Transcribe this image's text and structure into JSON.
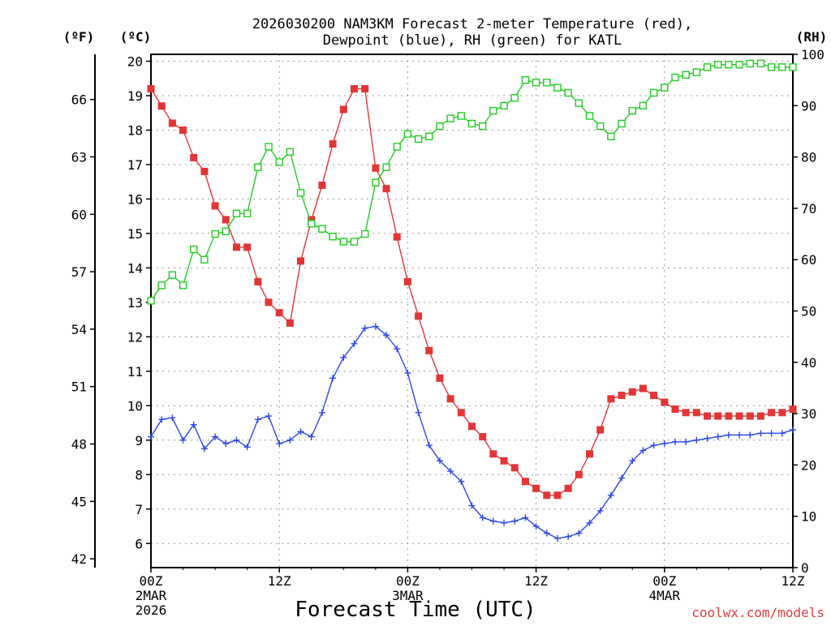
{
  "chart_data": {
    "type": "line",
    "title": [
      "2026030200 NAM3KM Forecast 2-meter Temperature (red),",
      "Dewpoint (blue), RH (green) for KATL"
    ],
    "xlabel": "Forecast Time (UTC)",
    "credit": "coolwx.com/models",
    "units": {
      "fahrenheit": "(ºF)",
      "celsius": "(ºC)",
      "rh": "(RH)"
    },
    "x_range_hours": [
      0,
      60
    ],
    "x_ticks": [
      {
        "hour": 0,
        "label": "00Z",
        "date": "2MAR",
        "year": "2026"
      },
      {
        "hour": 12,
        "label": "12Z",
        "date": "",
        "year": ""
      },
      {
        "hour": 24,
        "label": "00Z",
        "date": "3MAR",
        "year": ""
      },
      {
        "hour": 36,
        "label": "12Z",
        "date": "",
        "year": ""
      },
      {
        "hour": 48,
        "label": "00Z",
        "date": "4MAR",
        "year": ""
      },
      {
        "hour": 60,
        "label": "12Z",
        "date": "",
        "year": ""
      }
    ],
    "y_celsius": {
      "range": [
        5.3,
        20.2
      ],
      "ticks": [
        6,
        7,
        8,
        9,
        10,
        11,
        12,
        13,
        14,
        15,
        16,
        17,
        18,
        19,
        20
      ]
    },
    "y_fahrenheit": {
      "ticks": [
        42,
        45,
        48,
        51,
        54,
        57,
        60,
        63,
        66
      ]
    },
    "y_rh": {
      "range": [
        0,
        100
      ],
      "ticks": [
        0,
        10,
        20,
        30,
        40,
        50,
        60,
        70,
        80,
        90,
        100
      ]
    },
    "series": [
      {
        "name": "Temperature",
        "color": "#e23636",
        "marker": "filled-square",
        "unit": "C",
        "values": [
          19.2,
          18.7,
          18.2,
          18.0,
          17.2,
          16.8,
          15.8,
          15.4,
          14.6,
          14.6,
          13.6,
          13.0,
          12.7,
          12.4,
          14.2,
          15.4,
          16.4,
          17.6,
          18.6,
          19.2,
          19.2,
          16.9,
          16.3,
          14.9,
          13.6,
          12.6,
          11.6,
          10.8,
          10.2,
          9.8,
          9.4,
          9.1,
          8.6,
          8.4,
          8.2,
          7.8,
          7.6,
          7.4,
          7.4,
          7.6,
          8.0,
          8.6,
          9.3,
          10.2,
          10.3,
          10.4,
          10.5,
          10.3,
          10.1,
          9.9,
          9.8,
          9.8,
          9.7,
          9.7,
          9.7,
          9.7,
          9.7,
          9.7,
          9.8,
          9.8,
          9.9
        ]
      },
      {
        "name": "Dewpoint",
        "color": "#2c48e8",
        "marker": "plus",
        "unit": "C",
        "values": [
          9.1,
          9.6,
          9.65,
          9.0,
          9.45,
          8.75,
          9.1,
          8.9,
          9.0,
          8.8,
          9.6,
          9.7,
          8.9,
          9.0,
          9.25,
          9.1,
          9.8,
          10.8,
          11.4,
          11.8,
          12.25,
          12.3,
          12.05,
          11.65,
          10.95,
          9.8,
          8.85,
          8.4,
          8.1,
          7.8,
          7.1,
          6.75,
          6.65,
          6.6,
          6.65,
          6.75,
          6.5,
          6.3,
          6.15,
          6.2,
          6.3,
          6.6,
          6.95,
          7.4,
          7.9,
          8.4,
          8.7,
          8.85,
          8.9,
          8.95,
          8.95,
          9.0,
          9.05,
          9.1,
          9.15,
          9.15,
          9.15,
          9.2,
          9.2,
          9.2,
          9.3
        ]
      },
      {
        "name": "RH",
        "color": "#22cc22",
        "marker": "open-square",
        "unit": "%",
        "values": [
          52,
          55,
          57,
          55,
          62,
          60,
          65,
          65.5,
          69,
          69,
          78,
          82,
          79,
          81,
          73,
          67,
          66,
          64.5,
          63.5,
          63.5,
          65,
          75,
          78,
          82,
          84.5,
          83.5,
          84,
          86,
          87.5,
          88,
          86.5,
          86,
          89,
          90,
          91.5,
          95,
          94.5,
          94.5,
          93.5,
          92.5,
          90.5,
          88,
          86,
          84,
          86.5,
          89,
          90,
          92.5,
          93.5,
          95.5,
          96,
          96.5,
          97.5,
          98,
          98,
          98,
          98.2,
          98.2,
          97.5,
          97.5,
          97.5
        ]
      }
    ]
  }
}
